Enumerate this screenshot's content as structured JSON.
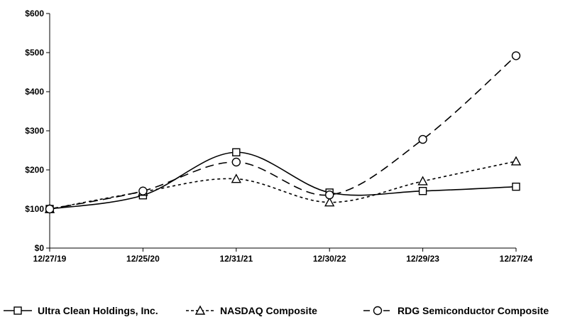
{
  "chart_data": {
    "type": "line",
    "title": "",
    "xlabel": "",
    "ylabel": "",
    "categories": [
      "12/27/19",
      "12/25/20",
      "12/31/21",
      "12/30/22",
      "12/29/23",
      "12/27/24"
    ],
    "y_ticks": [
      "$0",
      "$100",
      "$200",
      "$300",
      "$400",
      "$500",
      "$600"
    ],
    "y_tick_values": [
      0,
      100,
      200,
      300,
      400,
      500,
      600
    ],
    "ylim": [
      0,
      600
    ],
    "grid": false,
    "legend_position": "bottom",
    "series": [
      {
        "name": "Ultra Clean Holdings, Inc.",
        "values": [
          100,
          135,
          245,
          142,
          146,
          157
        ],
        "marker": "square",
        "line_style": "solid",
        "color": "#000000"
      },
      {
        "name": "NASDAQ Composite",
        "values": [
          100,
          144,
          177,
          117,
          171,
          222
        ],
        "marker": "triangle",
        "line_style": "short-dash",
        "color": "#000000"
      },
      {
        "name": "RDG Semiconductor Composite",
        "values": [
          100,
          146,
          220,
          136,
          278,
          492
        ],
        "marker": "circle",
        "line_style": "long-dash",
        "color": "#000000"
      }
    ]
  }
}
